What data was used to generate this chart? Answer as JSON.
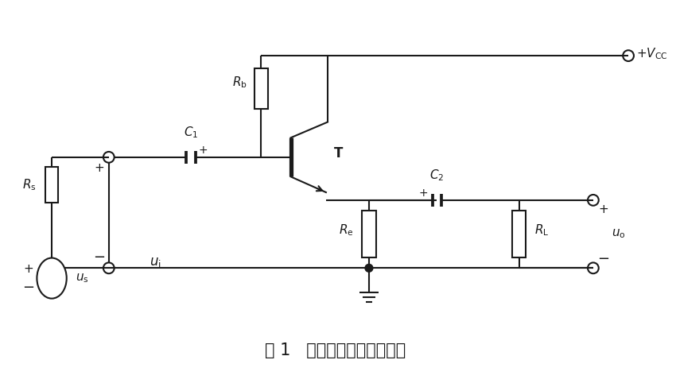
{
  "title": "图 1   射极输出器的典型电路",
  "background_color": "#ffffff",
  "line_color": "#1a1a1a",
  "figsize": [
    8.5,
    4.87
  ],
  "dpi": 100
}
